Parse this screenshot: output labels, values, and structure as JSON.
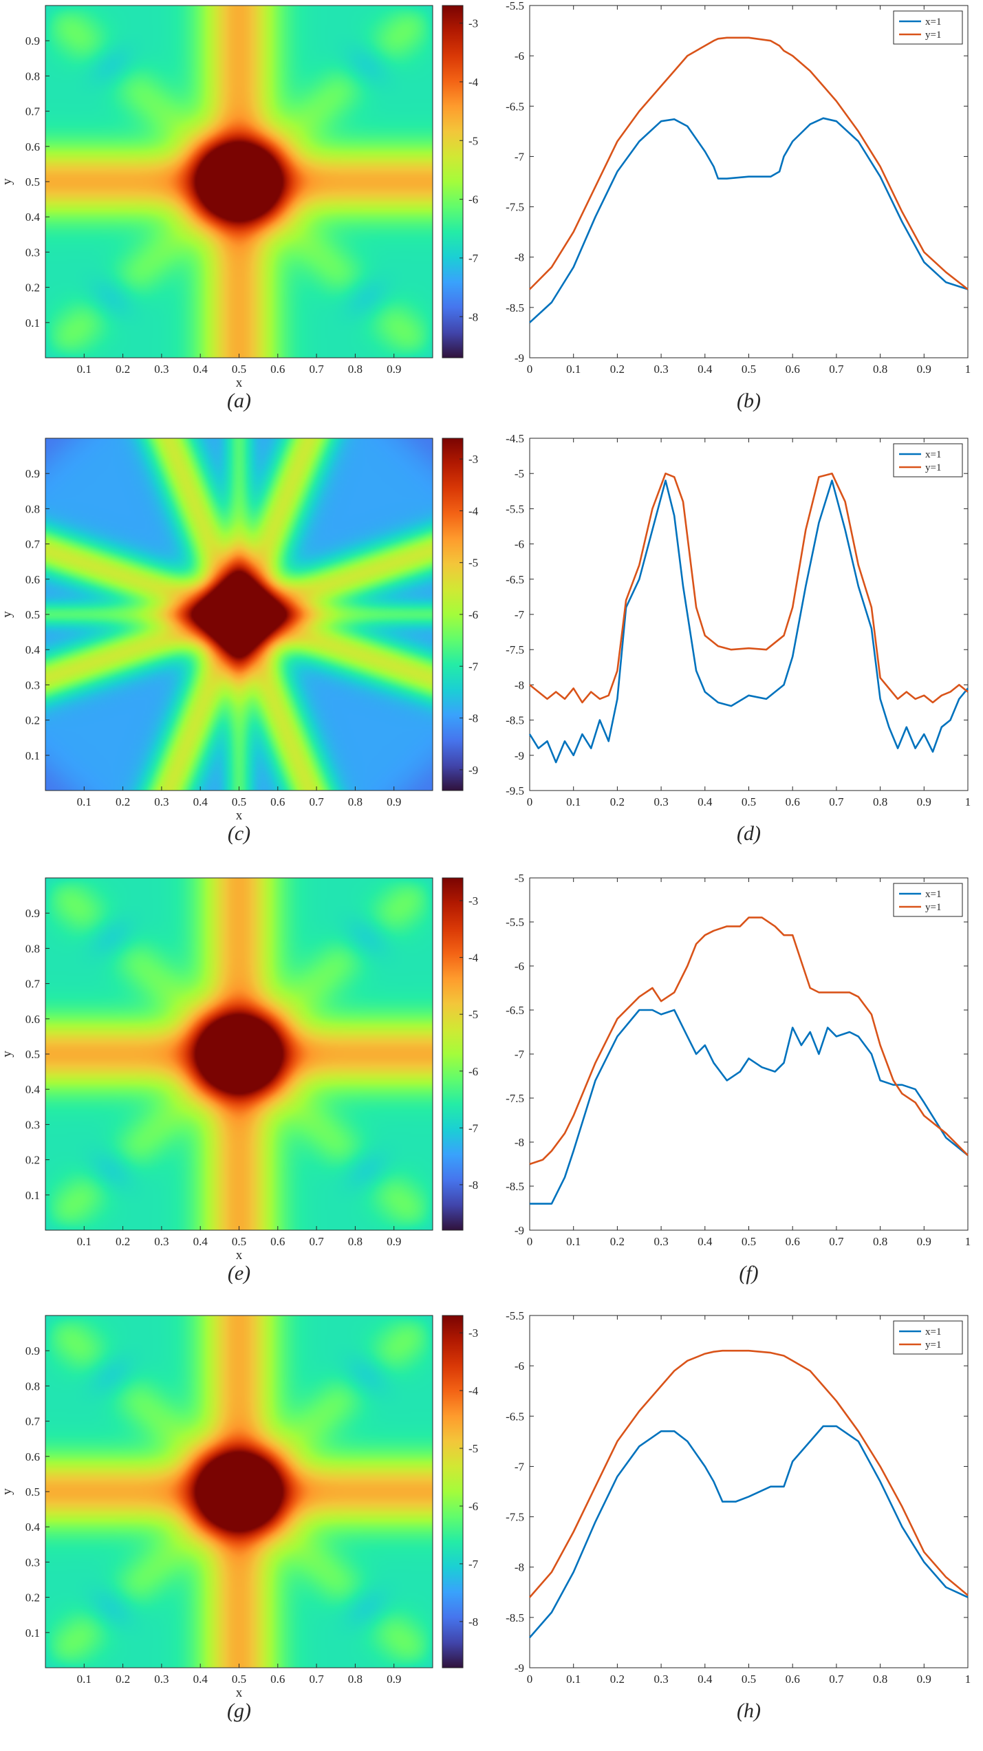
{
  "colors": {
    "x1_line": "#0072BD",
    "y1_line": "#D95319",
    "axis": "#262626",
    "colormap": [
      "#30123b",
      "#4145ab",
      "#4675ed",
      "#39a2fc",
      "#1bcfd4",
      "#24eca6",
      "#61fc6c",
      "#a4fc3b",
      "#d1e834",
      "#f3c63a",
      "#fe9b2d",
      "#f36315",
      "#d93806",
      "#b11901",
      "#7a0402"
    ]
  },
  "chart_data": [
    {
      "type": "heatmap",
      "panel_label": "(a)",
      "xlabel": "x",
      "ylabel": "y",
      "xticks": [
        "0.1",
        "0.2",
        "0.3",
        "0.4",
        "0.5",
        "0.6",
        "0.7",
        "0.8",
        "0.9"
      ],
      "yticks": [
        "0.1",
        "0.2",
        "0.3",
        "0.4",
        "0.5",
        "0.6",
        "0.7",
        "0.8",
        "0.9"
      ],
      "colorbar_ticks": [
        "-3",
        "-4",
        "-5",
        "-6",
        "-7",
        "-8"
      ],
      "colorbar_range": [
        -8.7,
        -2.7
      ],
      "pattern": "cross"
    },
    {
      "type": "line",
      "panel_label": "(b)",
      "xlim": [
        0,
        1
      ],
      "ylim": [
        -9,
        -5.5
      ],
      "xticks": [
        "0",
        "0.1",
        "0.2",
        "0.3",
        "0.4",
        "0.5",
        "0.6",
        "0.7",
        "0.8",
        "0.9",
        "1"
      ],
      "yticks": [
        "-5.5",
        "-6",
        "-6.5",
        "-7",
        "-7.5",
        "-8",
        "-8.5",
        "-9"
      ],
      "x": [
        0,
        0.05,
        0.1,
        0.15,
        0.2,
        0.25,
        0.3,
        0.33,
        0.36,
        0.4,
        0.42,
        0.43,
        0.45,
        0.5,
        0.55,
        0.57,
        0.58,
        0.6,
        0.64,
        0.67,
        0.7,
        0.75,
        0.8,
        0.85,
        0.9,
        0.95,
        1
      ],
      "series": [
        {
          "name": "x=1",
          "values": [
            -8.65,
            -8.45,
            -8.1,
            -7.6,
            -7.15,
            -6.85,
            -6.65,
            -6.63,
            -6.7,
            -6.95,
            -7.1,
            -7.22,
            -7.22,
            -7.2,
            -7.2,
            -7.15,
            -7.0,
            -6.85,
            -6.68,
            -6.62,
            -6.65,
            -6.85,
            -7.2,
            -7.65,
            -8.05,
            -8.25,
            -8.32
          ]
        },
        {
          "name": "y=1",
          "values": [
            -8.32,
            -8.1,
            -7.75,
            -7.3,
            -6.85,
            -6.55,
            -6.3,
            -6.15,
            -6.0,
            -5.9,
            -5.85,
            -5.83,
            -5.82,
            -5.82,
            -5.85,
            -5.9,
            -5.95,
            -6.0,
            -6.15,
            -6.3,
            -6.45,
            -6.75,
            -7.1,
            -7.55,
            -7.95,
            -8.15,
            -8.32
          ]
        }
      ]
    },
    {
      "type": "heatmap",
      "panel_label": "(c)",
      "xlabel": "x",
      "ylabel": "y",
      "xticks": [
        "0.1",
        "0.2",
        "0.3",
        "0.4",
        "0.5",
        "0.6",
        "0.7",
        "0.8",
        "0.9"
      ],
      "yticks": [
        "0.1",
        "0.2",
        "0.3",
        "0.4",
        "0.5",
        "0.6",
        "0.7",
        "0.8",
        "0.9"
      ],
      "colorbar_ticks": [
        "-3",
        "-4",
        "-5",
        "-6",
        "-7",
        "-8",
        "-9"
      ],
      "colorbar_range": [
        -9.4,
        -2.6
      ],
      "pattern": "star"
    },
    {
      "type": "line",
      "panel_label": "(d)",
      "xlim": [
        0,
        1
      ],
      "ylim": [
        -9.5,
        -4.5
      ],
      "xticks": [
        "0",
        "0.1",
        "0.2",
        "0.3",
        "0.4",
        "0.5",
        "0.6",
        "0.7",
        "0.8",
        "0.9",
        "1"
      ],
      "yticks": [
        "-4.5",
        "-5",
        "-5.5",
        "-6",
        "-6.5",
        "-7",
        "-7.5",
        "-8",
        "-8.5",
        "-9",
        "-9.5"
      ],
      "x": [
        0,
        0.02,
        0.04,
        0.06,
        0.08,
        0.1,
        0.12,
        0.14,
        0.16,
        0.18,
        0.2,
        0.22,
        0.25,
        0.28,
        0.31,
        0.33,
        0.35,
        0.38,
        0.4,
        0.43,
        0.46,
        0.5,
        0.54,
        0.58,
        0.6,
        0.63,
        0.66,
        0.69,
        0.72,
        0.75,
        0.78,
        0.8,
        0.82,
        0.84,
        0.86,
        0.88,
        0.9,
        0.92,
        0.94,
        0.96,
        0.98,
        1
      ],
      "series": [
        {
          "name": "x=1",
          "values": [
            -8.7,
            -8.9,
            -8.8,
            -9.1,
            -8.8,
            -9.0,
            -8.7,
            -8.9,
            -8.5,
            -8.8,
            -8.2,
            -6.9,
            -6.5,
            -5.8,
            -5.1,
            -5.6,
            -6.6,
            -7.8,
            -8.1,
            -8.25,
            -8.3,
            -8.15,
            -8.2,
            -8.0,
            -7.6,
            -6.6,
            -5.7,
            -5.1,
            -5.8,
            -6.6,
            -7.2,
            -8.2,
            -8.6,
            -8.9,
            -8.6,
            -8.9,
            -8.7,
            -8.95,
            -8.6,
            -8.5,
            -8.2,
            -8.05
          ]
        },
        {
          "name": "y=1",
          "values": [
            -8.0,
            -8.1,
            -8.2,
            -8.1,
            -8.2,
            -8.05,
            -8.25,
            -8.1,
            -8.2,
            -8.15,
            -7.8,
            -6.8,
            -6.3,
            -5.5,
            -5.0,
            -5.05,
            -5.4,
            -6.9,
            -7.3,
            -7.45,
            -7.5,
            -7.48,
            -7.5,
            -7.3,
            -6.9,
            -5.8,
            -5.05,
            -5.0,
            -5.4,
            -6.3,
            -6.9,
            -7.9,
            -8.05,
            -8.2,
            -8.1,
            -8.2,
            -8.15,
            -8.25,
            -8.15,
            -8.1,
            -8.0,
            -8.1
          ]
        }
      ]
    },
    {
      "type": "heatmap",
      "panel_label": "(e)",
      "xlabel": "x",
      "ylabel": "y",
      "xticks": [
        "0.1",
        "0.2",
        "0.3",
        "0.4",
        "0.5",
        "0.6",
        "0.7",
        "0.8",
        "0.9"
      ],
      "yticks": [
        "0.1",
        "0.2",
        "0.3",
        "0.4",
        "0.5",
        "0.6",
        "0.7",
        "0.8",
        "0.9"
      ],
      "colorbar_ticks": [
        "-3",
        "-4",
        "-5",
        "-6",
        "-7",
        "-8"
      ],
      "colorbar_range": [
        -8.8,
        -2.6
      ],
      "pattern": "cross"
    },
    {
      "type": "line",
      "panel_label": "(f)",
      "xlim": [
        0,
        1
      ],
      "ylim": [
        -9,
        -5
      ],
      "xticks": [
        "0",
        "0.1",
        "0.2",
        "0.3",
        "0.4",
        "0.5",
        "0.6",
        "0.7",
        "0.8",
        "0.9",
        "1"
      ],
      "yticks": [
        "-5",
        "-5.5",
        "-6",
        "-6.5",
        "-7",
        "-7.5",
        "-8",
        "-8.5",
        "-9"
      ],
      "x": [
        0,
        0.03,
        0.05,
        0.08,
        0.1,
        0.15,
        0.2,
        0.25,
        0.28,
        0.3,
        0.33,
        0.36,
        0.38,
        0.4,
        0.42,
        0.45,
        0.48,
        0.5,
        0.53,
        0.56,
        0.58,
        0.6,
        0.62,
        0.64,
        0.66,
        0.68,
        0.7,
        0.73,
        0.75,
        0.78,
        0.8,
        0.83,
        0.85,
        0.88,
        0.9,
        0.95,
        1
      ],
      "series": [
        {
          "name": "x=1",
          "values": [
            -8.7,
            -8.7,
            -8.7,
            -8.4,
            -8.1,
            -7.3,
            -6.8,
            -6.5,
            -6.5,
            -6.55,
            -6.5,
            -6.8,
            -7.0,
            -6.9,
            -7.1,
            -7.3,
            -7.2,
            -7.05,
            -7.15,
            -7.2,
            -7.1,
            -6.7,
            -6.9,
            -6.75,
            -7.0,
            -6.7,
            -6.8,
            -6.75,
            -6.8,
            -7.0,
            -7.3,
            -7.35,
            -7.35,
            -7.4,
            -7.55,
            -7.95,
            -8.15
          ]
        },
        {
          "name": "y=1",
          "values": [
            -8.25,
            -8.2,
            -8.1,
            -7.9,
            -7.7,
            -7.1,
            -6.6,
            -6.35,
            -6.25,
            -6.4,
            -6.3,
            -6.0,
            -5.75,
            -5.65,
            -5.6,
            -5.55,
            -5.55,
            -5.45,
            -5.45,
            -5.55,
            -5.65,
            -5.65,
            -5.95,
            -6.25,
            -6.3,
            -6.3,
            -6.3,
            -6.3,
            -6.35,
            -6.55,
            -6.9,
            -7.3,
            -7.45,
            -7.55,
            -7.7,
            -7.9,
            -8.15
          ]
        }
      ]
    },
    {
      "type": "heatmap",
      "panel_label": "(g)",
      "xlabel": "x",
      "ylabel": "y",
      "xticks": [
        "0.1",
        "0.2",
        "0.3",
        "0.4",
        "0.5",
        "0.6",
        "0.7",
        "0.8",
        "0.9"
      ],
      "yticks": [
        "0.1",
        "0.2",
        "0.3",
        "0.4",
        "0.5",
        "0.6",
        "0.7",
        "0.8",
        "0.9"
      ],
      "colorbar_ticks": [
        "-3",
        "-4",
        "-5",
        "-6",
        "-7",
        "-8"
      ],
      "colorbar_range": [
        -8.8,
        -2.7
      ],
      "pattern": "cross"
    },
    {
      "type": "line",
      "panel_label": "(h)",
      "xlim": [
        0,
        1
      ],
      "ylim": [
        -9,
        -5.5
      ],
      "xticks": [
        "0",
        "0.1",
        "0.2",
        "0.3",
        "0.4",
        "0.5",
        "0.6",
        "0.7",
        "0.8",
        "0.9",
        "1"
      ],
      "yticks": [
        "-5.5",
        "-6",
        "-6.5",
        "-7",
        "-7.5",
        "-8",
        "-8.5",
        "-9"
      ],
      "x": [
        0,
        0.05,
        0.1,
        0.15,
        0.2,
        0.25,
        0.3,
        0.33,
        0.36,
        0.4,
        0.42,
        0.44,
        0.47,
        0.5,
        0.55,
        0.58,
        0.6,
        0.64,
        0.67,
        0.7,
        0.75,
        0.8,
        0.85,
        0.9,
        0.95,
        1
      ],
      "series": [
        {
          "name": "x=1",
          "values": [
            -8.7,
            -8.45,
            -8.05,
            -7.55,
            -7.1,
            -6.8,
            -6.65,
            -6.65,
            -6.75,
            -7.0,
            -7.15,
            -7.35,
            -7.35,
            -7.3,
            -7.2,
            -7.2,
            -6.95,
            -6.75,
            -6.6,
            -6.6,
            -6.75,
            -7.15,
            -7.6,
            -7.95,
            -8.2,
            -8.3
          ]
        },
        {
          "name": "y=1",
          "values": [
            -8.3,
            -8.05,
            -7.65,
            -7.2,
            -6.75,
            -6.45,
            -6.2,
            -6.05,
            -5.95,
            -5.88,
            -5.86,
            -5.85,
            -5.85,
            -5.85,
            -5.87,
            -5.9,
            -5.95,
            -6.05,
            -6.2,
            -6.35,
            -6.65,
            -7.0,
            -7.4,
            -7.85,
            -8.1,
            -8.28
          ]
        }
      ]
    }
  ]
}
